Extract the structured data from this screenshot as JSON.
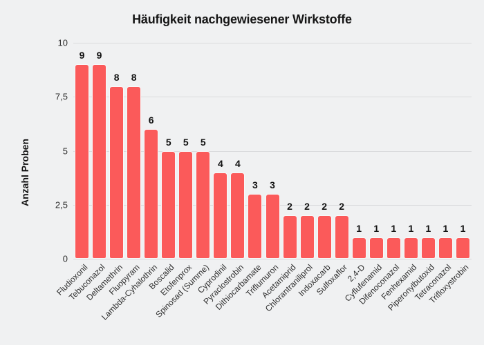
{
  "chart_data": {
    "type": "bar",
    "title": "Häufigkeit nachgewiesener Wirkstoffe",
    "xlabel": "",
    "ylabel": "Anzahl Proben",
    "categories": [
      "Fludioxonil",
      "Tebuconazol",
      "Deltamethrin",
      "Fluopyram",
      "Lambda-Cyhalothrin",
      "Boscalid",
      "Etofenprox",
      "Spinosad (Summe)",
      "Cyprodinil",
      "Pyraclostrobin",
      "Dithiocarbamate",
      "Triflumuron",
      "Acetamiprid",
      "Chlorantraniliprol",
      "Indoxacarb",
      "Sulfoxaflor",
      "2,4-D",
      "Cyflufenamid",
      "Difenoconazol",
      "Fenhexamid",
      "Piperonylbutoxid",
      "Tetraconazol",
      "Trifloxystrobin"
    ],
    "values": [
      9,
      9,
      8,
      8,
      6,
      5,
      5,
      5,
      4,
      4,
      3,
      3,
      2,
      2,
      2,
      2,
      1,
      1,
      1,
      1,
      1,
      1,
      1
    ],
    "value_labels_shown": true,
    "ylim": [
      0,
      10
    ],
    "yticks": [
      0,
      2.5,
      5,
      7.5,
      10
    ],
    "ytick_labels": [
      "0",
      "2,5",
      "5",
      "7,5",
      "10"
    ],
    "grid": true,
    "legend_position": "none"
  },
  "colors": {
    "background": "#F0F1F2",
    "bar": "#FB5A5A",
    "bar_border": "#F8F9FA",
    "gridline": "#D9DADC",
    "title_text": "#161616",
    "axis_title_text": "#111111",
    "tick_text": "#2E2E2E",
    "value_label_text": "#131313"
  }
}
